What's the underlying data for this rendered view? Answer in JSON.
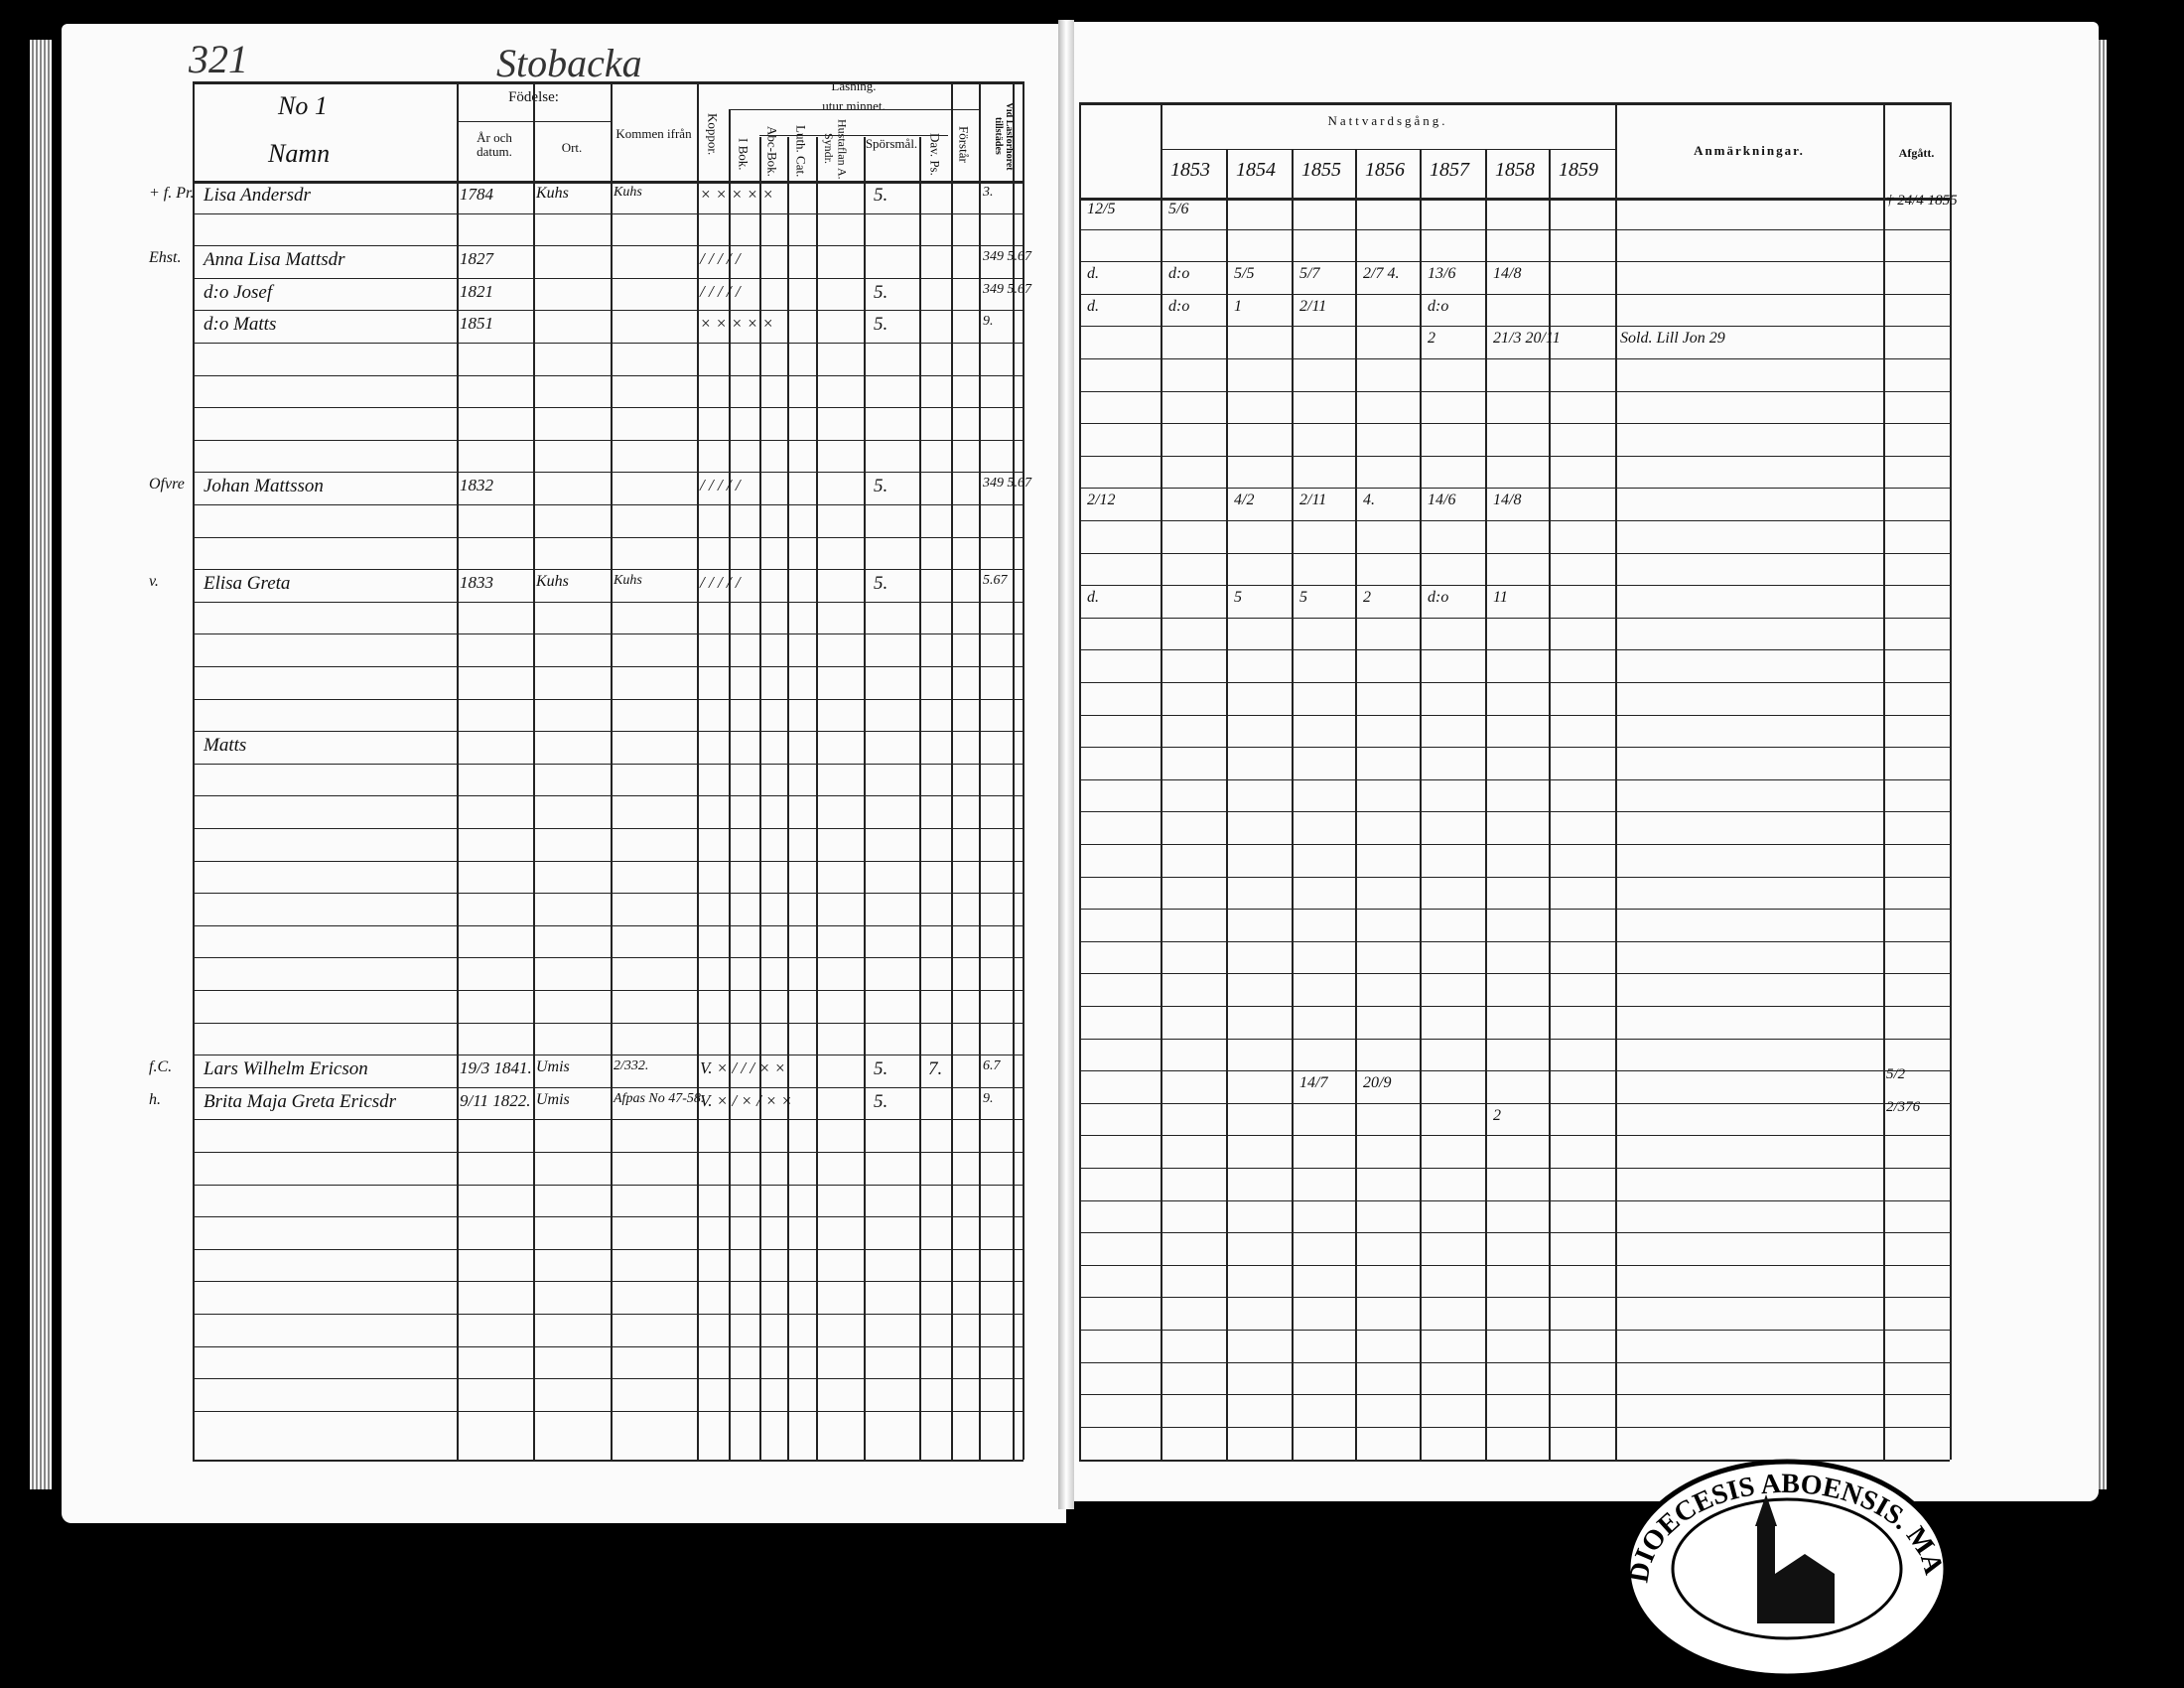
{
  "left_page": {
    "page_number": "321",
    "place_title": "Stobacka",
    "headers": {
      "name_col": {
        "line1": "No 1",
        "line2": "Namn"
      },
      "birth": "Födelse:",
      "birth_year": "År och datum.",
      "birth_place": "Ort.",
      "came_from": "Kommen ifrån",
      "smallpox": "Koppor.",
      "reading": "Läsning.",
      "by_heart": "utur minnet.",
      "book": "I Bok.",
      "abc": "Abc-Bok.",
      "catechism": "Luth. Cat.",
      "table": "Hustaflan A. Syndr.",
      "questions": "Spörsmål.",
      "psalms": "Dav. Ps.",
      "understanding": "Förstår",
      "last_col": "Vid Läsförhöret tillstädes"
    },
    "entries": [
      {
        "mark": "+ f. Pr.",
        "name": "Lisa Andersdr",
        "year": "1784",
        "place": "Kuhs",
        "from": "Kuhs",
        "reading": "× × × × ×",
        "questions": "5.",
        "last": "3."
      },
      {
        "mark": "Ehst.",
        "name": "Anna Lisa Mattsdr",
        "year": "1827",
        "place": "",
        "from": "",
        "reading": "/ / / / /",
        "questions": "",
        "last": "349 5.67"
      },
      {
        "mark": "",
        "name": "d:o Josef",
        "year": "1821",
        "place": "",
        "from": "",
        "reading": "/ / / / /",
        "questions": "5.",
        "last": "349 5.67"
      },
      {
        "mark": "",
        "name": "d:o Matts",
        "year": "1851",
        "place": "",
        "from": "",
        "reading": "× × × × ×",
        "questions": "5.",
        "last": "9."
      },
      {
        "mark": "Ofvre",
        "name": "Johan Mattsson",
        "year": "1832",
        "place": "",
        "from": "",
        "reading": "/ / / / /",
        "questions": "5.",
        "last": "349 5.67"
      },
      {
        "mark": "v.",
        "name": "Elisa Greta",
        "year": "1833",
        "place": "Kuhs",
        "from": "Kuhs",
        "reading": "/ / / / /",
        "questions": "5.",
        "last": "5.67"
      },
      {
        "mark": "",
        "name": "Matts",
        "year": "",
        "place": "",
        "from": "",
        "reading": "",
        "questions": "",
        "last": ""
      },
      {
        "mark": "f.C.",
        "name": "Lars Wilhelm Ericson",
        "year": "19/3 1841.",
        "place": "Umis",
        "from": "2/332.",
        "reading": "V. × / / / × ×",
        "questions": "5.",
        "psalms": "7.",
        "last": "6.7"
      },
      {
        "mark": "h.",
        "name": "Brita Maja Greta Ericsdr",
        "year": "9/11 1822.",
        "place": "Umis",
        "from": "Afpas No 47-58.",
        "reading": "V. × / × / × ×",
        "questions": "5.",
        "last": "9."
      }
    ]
  },
  "right_page": {
    "communion_header": "Nattvardsgång.",
    "years": [
      "1853",
      "1854",
      "1855",
      "1856",
      "1857",
      "1858",
      "1859"
    ],
    "remarks_header": "Anmärkningar.",
    "departure_header": "Afgått.",
    "rows": [
      {
        "dates": [
          "12/5",
          "5/6",
          "",
          "",
          "",
          "",
          ""
        ],
        "remark": "",
        "departure": "† 24/4 1855"
      },
      {
        "dates": [
          "d.",
          "d:o",
          "5/5",
          "5/7",
          "2/7 4.",
          "13/6",
          "14/8"
        ],
        "remark": "",
        "departure": ""
      },
      {
        "dates": [
          "d.",
          "d:o",
          "1",
          "2/11",
          "",
          "d:o",
          ""
        ],
        "remark": "",
        "departure": ""
      },
      {
        "dates": [
          "",
          "",
          "",
          "",
          "",
          "2",
          "21/3 20/11"
        ],
        "remark": "Sold. Lill Jon 29",
        "departure": ""
      },
      {
        "dates": [
          "2/12",
          "",
          "4/2",
          "2/11",
          "4.",
          "14/6",
          "14/8"
        ],
        "remark": "",
        "departure": ""
      },
      {
        "dates": [
          "d.",
          "",
          "5",
          "5",
          "2",
          "d:o",
          "11"
        ],
        "remark": "",
        "departure": ""
      },
      {
        "dates": [
          "",
          "",
          "",
          "",
          "",
          "",
          ""
        ],
        "remark": "",
        "departure": ""
      },
      {
        "dates": [
          "",
          "",
          "",
          "14/7",
          "20/9",
          "",
          ""
        ],
        "remark": "",
        "departure": "5/2"
      },
      {
        "dates": [
          "",
          "",
          "",
          "",
          "",
          "",
          "2"
        ],
        "remark": "",
        "departure": "2/376"
      }
    ]
  },
  "seal": {
    "text": "DIOECESIS ABOENSIS. MAGN. PRINC. FINL."
  }
}
